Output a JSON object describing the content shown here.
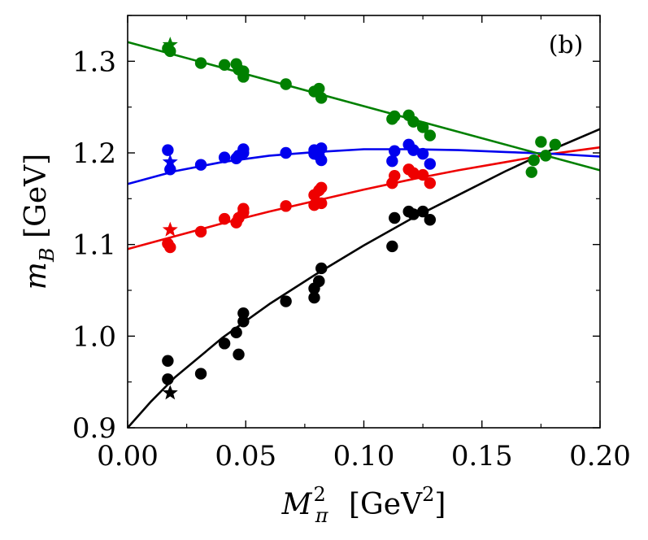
{
  "chart_data": {
    "type": "scatter",
    "panel_label": "(b)",
    "xlabel": "M_π^2 [GeV^2]",
    "ylabel": "m_B [GeV]",
    "xlim": [
      0.0,
      0.2
    ],
    "ylim": [
      0.9,
      1.35
    ],
    "x_ticks": [
      0.0,
      0.05,
      0.1,
      0.15,
      0.2
    ],
    "x_tick_labels": [
      "0.00",
      "0.05",
      "0.10",
      "0.15",
      "0.20"
    ],
    "y_ticks": [
      0.9,
      1.0,
      1.1,
      1.2,
      1.3
    ],
    "y_tick_labels": [
      "0.9",
      "1.0",
      "1.1",
      "1.2",
      "1.3"
    ],
    "grid": false,
    "series": [
      {
        "color": "#000000",
        "points": [
          [
            0.017,
            0.973
          ],
          [
            0.017,
            0.953
          ],
          [
            0.031,
            0.959
          ],
          [
            0.041,
            0.992
          ],
          [
            0.046,
            1.004
          ],
          [
            0.047,
            0.98
          ],
          [
            0.049,
            1.016
          ],
          [
            0.049,
            1.025
          ],
          [
            0.067,
            1.038
          ],
          [
            0.079,
            1.042
          ],
          [
            0.079,
            1.052
          ],
          [
            0.081,
            1.06
          ],
          [
            0.082,
            1.074
          ],
          [
            0.081,
            1.06
          ],
          [
            0.112,
            1.098
          ],
          [
            0.113,
            1.129
          ],
          [
            0.119,
            1.136
          ],
          [
            0.121,
            1.133
          ],
          [
            0.125,
            1.136
          ],
          [
            0.128,
            1.127
          ]
        ],
        "star": [
          0.018,
          0.938
        ],
        "fit": [
          [
            0.0,
            0.9
          ],
          [
            0.01,
            0.929
          ],
          [
            0.02,
            0.955
          ],
          [
            0.04,
            0.998
          ],
          [
            0.06,
            1.035
          ],
          [
            0.08,
            1.068
          ],
          [
            0.1,
            1.099
          ],
          [
            0.12,
            1.128
          ],
          [
            0.14,
            1.154
          ],
          [
            0.16,
            1.18
          ],
          [
            0.18,
            1.204
          ],
          [
            0.2,
            1.226
          ]
        ]
      },
      {
        "color": "#ee0000",
        "points": [
          [
            0.017,
            1.101
          ],
          [
            0.018,
            1.097
          ],
          [
            0.031,
            1.114
          ],
          [
            0.041,
            1.128
          ],
          [
            0.046,
            1.124
          ],
          [
            0.047,
            1.129
          ],
          [
            0.049,
            1.135
          ],
          [
            0.049,
            1.139
          ],
          [
            0.067,
            1.142
          ],
          [
            0.079,
            1.143
          ],
          [
            0.079,
            1.154
          ],
          [
            0.081,
            1.159
          ],
          [
            0.082,
            1.145
          ],
          [
            0.082,
            1.162
          ],
          [
            0.112,
            1.167
          ],
          [
            0.113,
            1.175
          ],
          [
            0.119,
            1.182
          ],
          [
            0.121,
            1.178
          ],
          [
            0.125,
            1.176
          ],
          [
            0.128,
            1.167
          ]
        ],
        "star": [
          0.018,
          1.116
        ],
        "fit": [
          [
            0.0,
            1.095
          ],
          [
            0.02,
            1.109
          ],
          [
            0.04,
            1.123
          ],
          [
            0.06,
            1.136
          ],
          [
            0.08,
            1.148
          ],
          [
            0.1,
            1.16
          ],
          [
            0.12,
            1.171
          ],
          [
            0.14,
            1.181
          ],
          [
            0.16,
            1.19
          ],
          [
            0.18,
            1.199
          ],
          [
            0.2,
            1.206
          ]
        ]
      },
      {
        "color": "#0000ee",
        "points": [
          [
            0.017,
            1.203
          ],
          [
            0.018,
            1.182
          ],
          [
            0.031,
            1.187
          ],
          [
            0.041,
            1.195
          ],
          [
            0.046,
            1.194
          ],
          [
            0.047,
            1.197
          ],
          [
            0.049,
            1.2
          ],
          [
            0.049,
            1.204
          ],
          [
            0.067,
            1.2
          ],
          [
            0.079,
            1.199
          ],
          [
            0.079,
            1.203
          ],
          [
            0.081,
            1.197
          ],
          [
            0.082,
            1.192
          ],
          [
            0.082,
            1.205
          ],
          [
            0.112,
            1.191
          ],
          [
            0.113,
            1.202
          ],
          [
            0.119,
            1.209
          ],
          [
            0.121,
            1.203
          ],
          [
            0.125,
            1.199
          ],
          [
            0.128,
            1.188
          ]
        ],
        "star": [
          0.018,
          1.19
        ],
        "fit": [
          [
            0.0,
            1.166
          ],
          [
            0.02,
            1.18
          ],
          [
            0.04,
            1.19
          ],
          [
            0.06,
            1.197
          ],
          [
            0.08,
            1.201
          ],
          [
            0.1,
            1.204
          ],
          [
            0.12,
            1.204
          ],
          [
            0.14,
            1.203
          ],
          [
            0.16,
            1.201
          ],
          [
            0.18,
            1.199
          ],
          [
            0.2,
            1.196
          ]
        ]
      },
      {
        "color": "#008000",
        "points": [
          [
            0.017,
            1.314
          ],
          [
            0.018,
            1.311
          ],
          [
            0.031,
            1.298
          ],
          [
            0.041,
            1.296
          ],
          [
            0.046,
            1.297
          ],
          [
            0.047,
            1.291
          ],
          [
            0.049,
            1.289
          ],
          [
            0.049,
            1.283
          ],
          [
            0.067,
            1.275
          ],
          [
            0.079,
            1.267
          ],
          [
            0.081,
            1.27
          ],
          [
            0.082,
            1.26
          ],
          [
            0.112,
            1.237
          ],
          [
            0.113,
            1.24
          ],
          [
            0.119,
            1.241
          ],
          [
            0.121,
            1.234
          ],
          [
            0.125,
            1.228
          ],
          [
            0.128,
            1.219
          ],
          [
            0.171,
            1.179
          ],
          [
            0.172,
            1.192
          ],
          [
            0.175,
            1.212
          ],
          [
            0.177,
            1.197
          ],
          [
            0.181,
            1.209
          ]
        ],
        "star": [
          0.018,
          1.318
        ],
        "fit": [
          [
            0.0,
            1.321
          ],
          [
            0.2,
            1.181
          ]
        ]
      }
    ]
  }
}
